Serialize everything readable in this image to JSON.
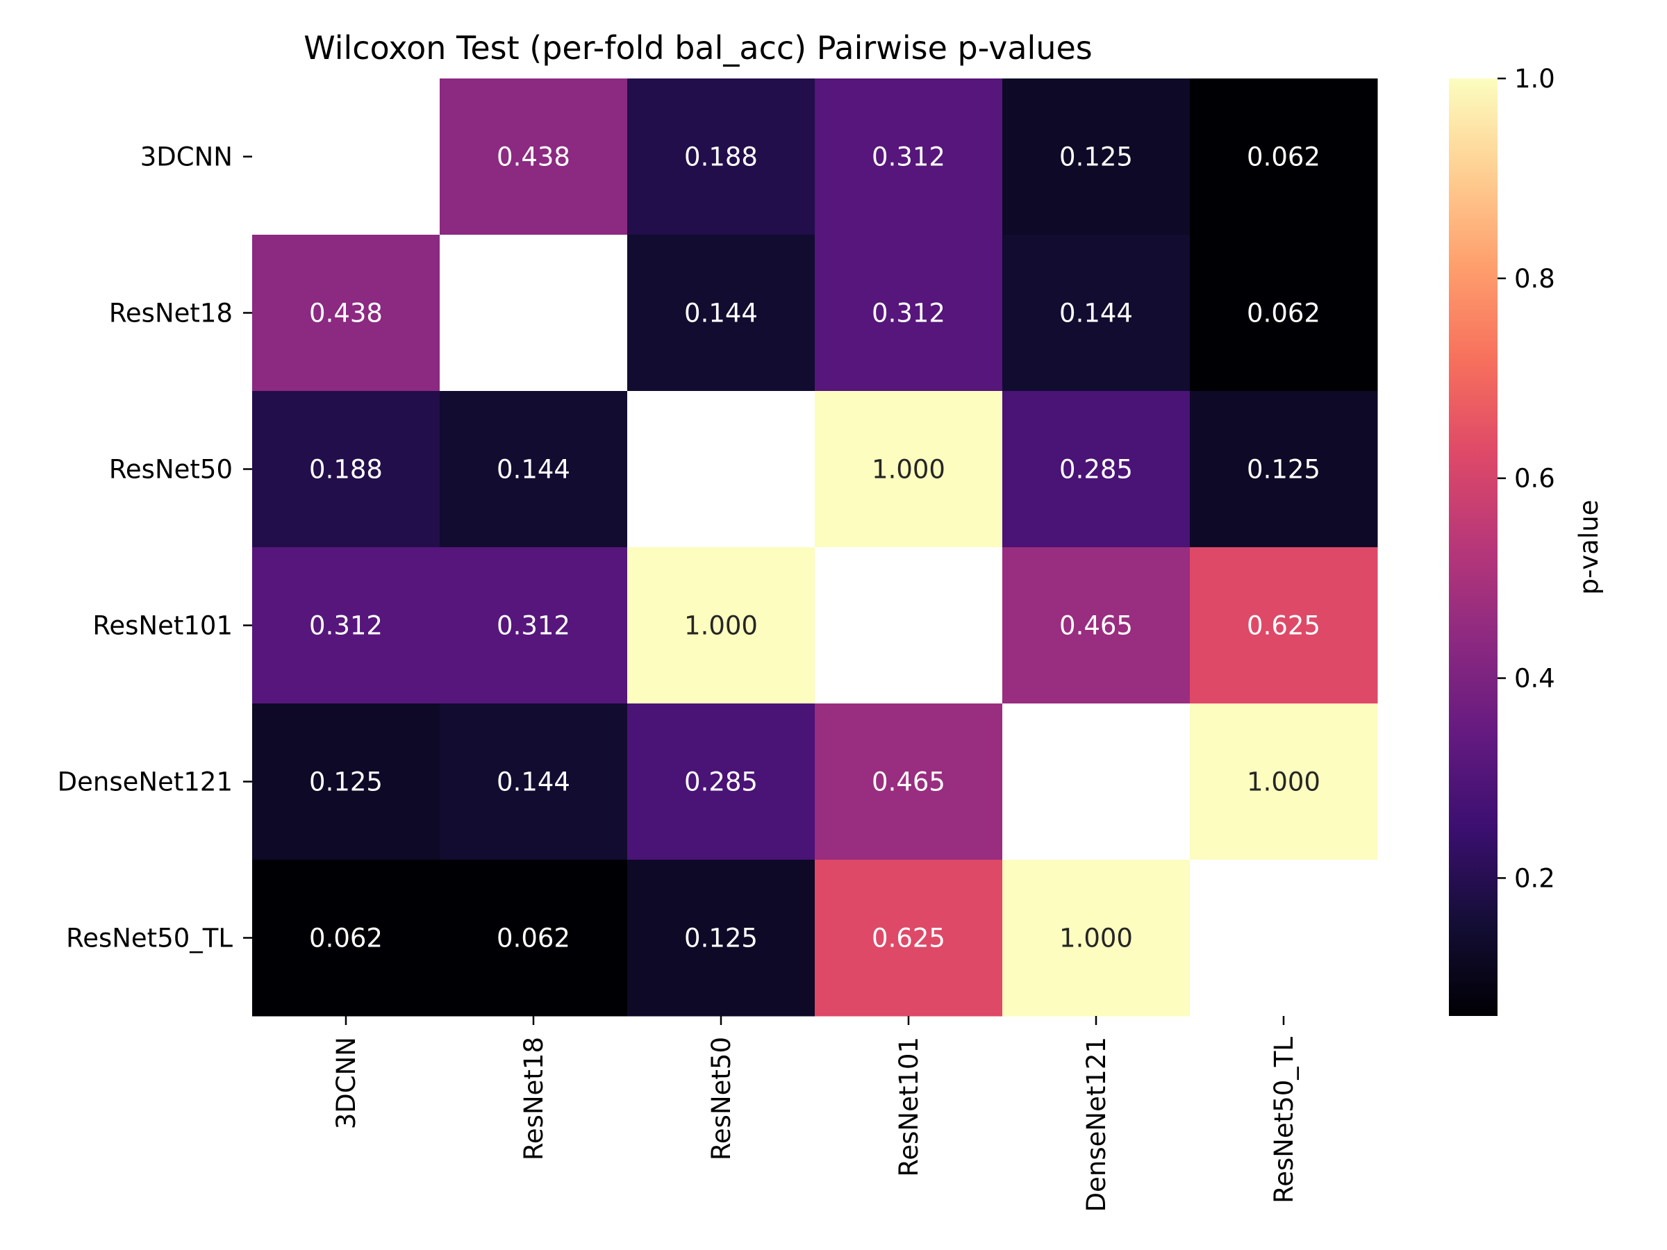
{
  "chart_data": {
    "type": "heatmap",
    "title": "Wilcoxon Test (per-fold bal_acc) Pairwise p-values",
    "xlabel": "",
    "ylabel": "",
    "x_categories": [
      "3DCNN",
      "ResNet18",
      "ResNet50",
      "ResNet101",
      "DenseNet121",
      "ResNet50_TL"
    ],
    "y_categories": [
      "3DCNN",
      "ResNet18",
      "ResNet50",
      "ResNet101",
      "DenseNet121",
      "ResNet50_TL"
    ],
    "values": [
      [
        null,
        0.438,
        0.188,
        0.312,
        0.125,
        0.062
      ],
      [
        0.438,
        null,
        0.144,
        0.312,
        0.144,
        0.062
      ],
      [
        0.188,
        0.144,
        null,
        1.0,
        0.285,
        0.125
      ],
      [
        0.312,
        0.312,
        1.0,
        null,
        0.465,
        0.625
      ],
      [
        0.125,
        0.144,
        0.285,
        0.465,
        null,
        1.0
      ],
      [
        0.062,
        0.062,
        0.125,
        0.625,
        1.0,
        null
      ]
    ],
    "cell_labels": [
      [
        "",
        "0.438",
        "0.188",
        "0.312",
        "0.125",
        "0.062"
      ],
      [
        "0.438",
        "",
        "0.144",
        "0.312",
        "0.144",
        "0.062"
      ],
      [
        "0.188",
        "0.144",
        "",
        "1.000",
        "0.285",
        "0.125"
      ],
      [
        "0.312",
        "0.312",
        "1.000",
        "",
        "0.465",
        "0.625"
      ],
      [
        "0.125",
        "0.144",
        "0.285",
        "0.465",
        "",
        "1.000"
      ],
      [
        "0.062",
        "0.062",
        "0.125",
        "0.625",
        "1.000",
        ""
      ]
    ],
    "colormap": "magma",
    "color_range": [
      0.062,
      1.0
    ],
    "colorbar": {
      "label": "p-value",
      "ticks": [
        0.2,
        0.4,
        0.6,
        0.8,
        1.0
      ],
      "tick_labels": [
        "0.2",
        "0.4",
        "0.6",
        "0.8",
        "1.0"
      ],
      "position": "right"
    },
    "grid": false
  }
}
